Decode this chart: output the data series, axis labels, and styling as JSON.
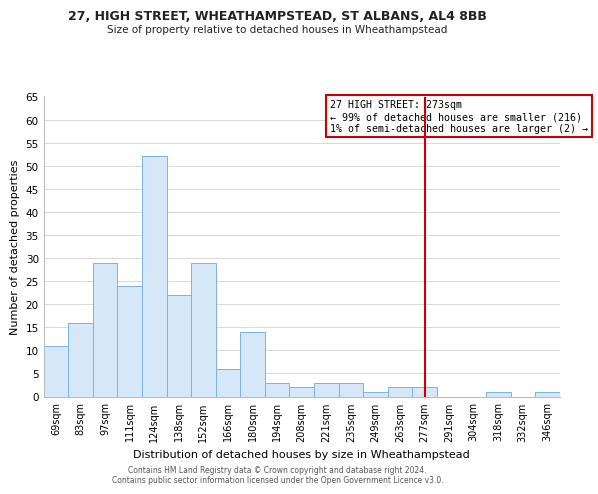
{
  "title": "27, HIGH STREET, WHEATHAMPSTEAD, ST ALBANS, AL4 8BB",
  "subtitle": "Size of property relative to detached houses in Wheathampstead",
  "xlabel": "Distribution of detached houses by size in Wheathampstead",
  "ylabel": "Number of detached properties",
  "bin_labels": [
    "69sqm",
    "83sqm",
    "97sqm",
    "111sqm",
    "124sqm",
    "138sqm",
    "152sqm",
    "166sqm",
    "180sqm",
    "194sqm",
    "208sqm",
    "221sqm",
    "235sqm",
    "249sqm",
    "263sqm",
    "277sqm",
    "291sqm",
    "304sqm",
    "318sqm",
    "332sqm",
    "346sqm"
  ],
  "bin_values": [
    11,
    16,
    29,
    24,
    52,
    22,
    29,
    6,
    14,
    3,
    2,
    3,
    3,
    1,
    2,
    2,
    0,
    0,
    1,
    0,
    1
  ],
  "bar_color": "#d6e8f7",
  "bar_edge_color": "#7ab4e0",
  "vline_x_index": 15,
  "vline_color": "#cc0000",
  "ylim": [
    0,
    65
  ],
  "yticks": [
    0,
    5,
    10,
    15,
    20,
    25,
    30,
    35,
    40,
    45,
    50,
    55,
    60,
    65
  ],
  "annotation_title": "27 HIGH STREET: 273sqm",
  "annotation_line1": "← 99% of detached houses are smaller (216)",
  "annotation_line2": "1% of semi-detached houses are larger (2) →",
  "annotation_box_color": "#ffffff",
  "annotation_box_edge": "#cc0000",
  "footer_line1": "Contains HM Land Registry data © Crown copyright and database right 2024.",
  "footer_line2": "Contains public sector information licensed under the Open Government Licence v3.0.",
  "background_color": "#ffffff",
  "grid_color": "#d8d8d8"
}
